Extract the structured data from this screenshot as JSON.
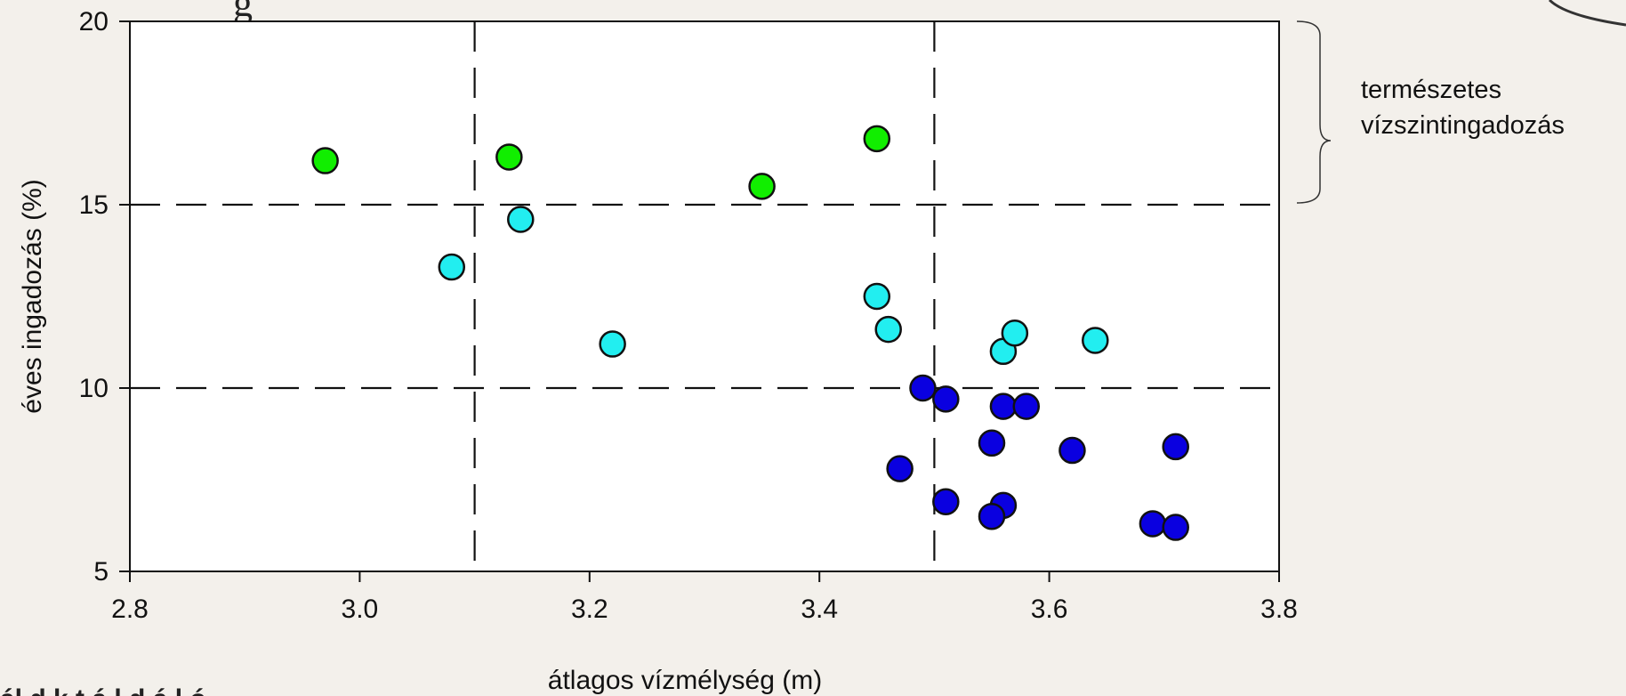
{
  "chart_data": {
    "type": "scatter",
    "xlabel": "átlagos vízmélység (m)",
    "ylabel": "éves ingadozás (%)",
    "xlim": [
      2.8,
      3.8
    ],
    "ylim": [
      5,
      20
    ],
    "x_ticks": [
      "2.8",
      "3.0",
      "3.2",
      "3.4",
      "3.6",
      "3.8"
    ],
    "y_ticks": [
      "5",
      "10",
      "15",
      "20"
    ],
    "grid": false,
    "reference_lines": {
      "x": [
        3.1,
        3.5
      ],
      "y": [
        10,
        15
      ]
    },
    "colors": {
      "green": "#11ee00",
      "cyan": "#22eef0",
      "blue": "#0a00e0"
    },
    "series": [
      {
        "color": "green",
        "points": [
          [
            2.97,
            16.2
          ],
          [
            3.13,
            16.3
          ],
          [
            3.35,
            15.5
          ],
          [
            3.45,
            16.8
          ]
        ]
      },
      {
        "color": "cyan",
        "points": [
          [
            3.08,
            13.3
          ],
          [
            3.14,
            14.6
          ],
          [
            3.22,
            11.2
          ],
          [
            3.45,
            12.5
          ],
          [
            3.46,
            11.6
          ],
          [
            3.56,
            11.0
          ],
          [
            3.57,
            11.5
          ],
          [
            3.64,
            11.3
          ]
        ]
      },
      {
        "color": "blue",
        "points": [
          [
            3.49,
            10.0
          ],
          [
            3.51,
            9.7
          ],
          [
            3.56,
            9.5
          ],
          [
            3.58,
            9.5
          ],
          [
            3.55,
            8.5
          ],
          [
            3.47,
            7.8
          ],
          [
            3.62,
            8.3
          ],
          [
            3.71,
            8.4
          ],
          [
            3.51,
            6.9
          ],
          [
            3.56,
            6.8
          ],
          [
            3.55,
            6.5
          ],
          [
            3.69,
            6.3
          ],
          [
            3.71,
            6.2
          ]
        ]
      }
    ],
    "annotation": {
      "lines": [
        "természetes",
        "vízszintingadozás"
      ],
      "y_range": [
        15,
        20
      ]
    }
  },
  "page": {
    "partial_heading": "g",
    "partial_footer": "ál d k t á l d á l ó"
  }
}
